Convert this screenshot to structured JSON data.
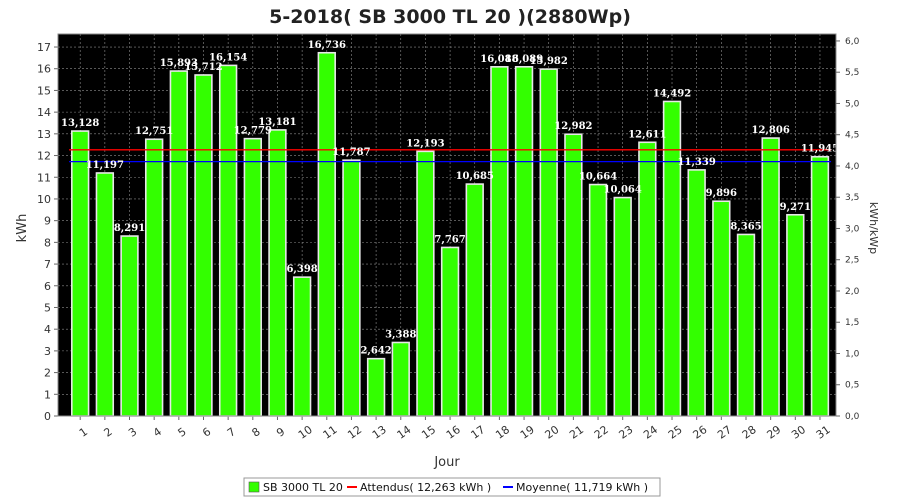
{
  "chart_data": {
    "type": "bar",
    "title": "5-2018( SB 3000 TL 20 )(2880Wp)",
    "xlabel": "Jour",
    "ylabel": "kWh",
    "y2label": "kWh/kWp",
    "ylim": [
      0,
      17.6
    ],
    "yticks": [
      0,
      1,
      2,
      3,
      4,
      5,
      6,
      7,
      8,
      9,
      10,
      11,
      12,
      13,
      14,
      15,
      16,
      17
    ],
    "y2ticks": [
      "0,0",
      "0,5",
      "1,0",
      "1,5",
      "2,0",
      "2,5",
      "3,0",
      "3,5",
      "4,0",
      "4,5",
      "5,0",
      "5,5",
      "6,0"
    ],
    "y2ratio": 2.88,
    "categories": [
      "1",
      "2",
      "3",
      "4",
      "5",
      "6",
      "7",
      "8",
      "9",
      "10",
      "11",
      "12",
      "13",
      "14",
      "15",
      "16",
      "17",
      "18",
      "19",
      "20",
      "21",
      "22",
      "23",
      "24",
      "25",
      "26",
      "27",
      "28",
      "29",
      "30",
      "31"
    ],
    "series": [
      {
        "name": "SB 3000 TL 20",
        "values": [
          13.128,
          11.197,
          8.291,
          12.751,
          15.893,
          15.712,
          16.154,
          12.779,
          13.181,
          6.398,
          16.736,
          11.787,
          2.642,
          3.388,
          12.193,
          7.767,
          10.685,
          16.088,
          16.089,
          15.982,
          12.982,
          10.664,
          10.064,
          12.611,
          14.492,
          11.339,
          9.896,
          8.365,
          12.806,
          9.271,
          11.945
        ],
        "labels": [
          "13,128",
          "11,197",
          "8,291",
          "12,751",
          "15,893",
          "15,712",
          "16,154",
          "12,779",
          "13,181",
          "6,398",
          "16,736",
          "11,787",
          "2,642",
          "3,388",
          "12,193",
          "7,767",
          "10,685",
          "16,088",
          "16,089",
          "15,982",
          "12,982",
          "10,664",
          "10,064",
          "12,611",
          "14,492",
          "11,339",
          "9,896",
          "8,365",
          "12,806",
          "9,271",
          "11,945"
        ],
        "color": "#33ff00"
      }
    ],
    "reference_lines": [
      {
        "name": "Attendus( 12,263 kWh )",
        "value": 12.263,
        "color": "#ff0000"
      },
      {
        "name": "Moyenne( 11,719 kWh )",
        "value": 11.719,
        "color": "#0000ff"
      }
    ],
    "legend": {
      "position": "bottom",
      "items": [
        "SB 3000 TL 20",
        "Attendus( 12,263 kWh )",
        "Moyenne( 11,719 kWh )"
      ]
    },
    "colors": {
      "plot_bg": "#000000",
      "grid": "#8c8c8c",
      "bar": "#33ff00",
      "bar_edge": "#e8e8e8"
    },
    "grid": true
  }
}
